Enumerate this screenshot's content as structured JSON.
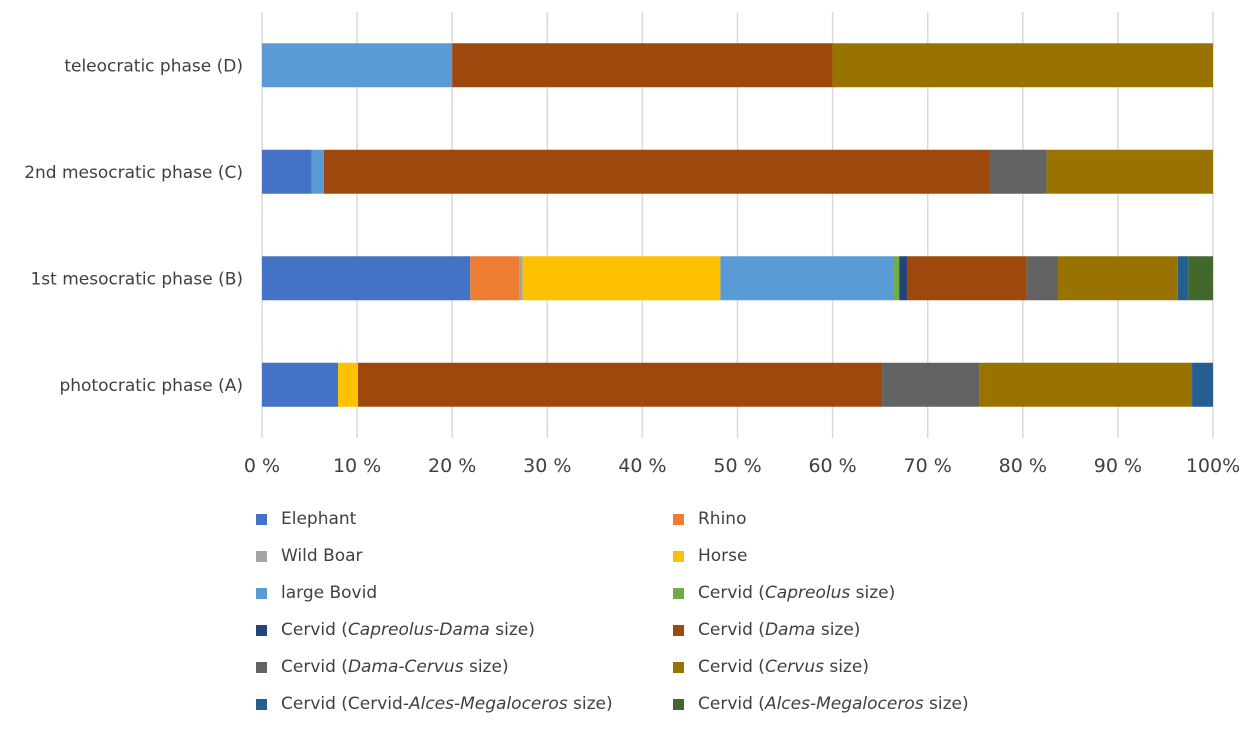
{
  "chart_data": {
    "type": "bar",
    "orientation": "horizontal",
    "stacked": "percent",
    "categories": [
      "photocratic phase (A)",
      "1st mesocratic phase (B)",
      "2nd mesocratic phase (C)",
      "teleocratic phase (D)"
    ],
    "series": [
      {
        "name": "Elephant",
        "label_parts": [
          {
            "t": "Elephant",
            "i": false
          }
        ],
        "color": "#4472C4",
        "values": [
          8.0,
          21.9,
          5.2,
          0
        ]
      },
      {
        "name": "Rhino",
        "label_parts": [
          {
            "t": "Rhino",
            "i": false
          }
        ],
        "color": "#ED7D31",
        "values": [
          0,
          5.2,
          0,
          0
        ]
      },
      {
        "name": "Wild Boar",
        "label_parts": [
          {
            "t": "Wild Boar",
            "i": false
          }
        ],
        "color": "#A5A5A5",
        "values": [
          0,
          0.3,
          0,
          0
        ]
      },
      {
        "name": "Horse",
        "label_parts": [
          {
            "t": "Horse",
            "i": false
          }
        ],
        "color": "#FFC000",
        "values": [
          2.1,
          20.8,
          0,
          0
        ]
      },
      {
        "name": "large Bovid",
        "label_parts": [
          {
            "t": "large Bovid",
            "i": false
          }
        ],
        "color": "#5B9BD5",
        "values": [
          0,
          18.2,
          1.3,
          20.0
        ]
      },
      {
        "name": "Cervid (Capreolus size)",
        "label_parts": [
          {
            "t": "Cervid (",
            "i": false
          },
          {
            "t": "Capreolus",
            "i": true
          },
          {
            "t": " size)",
            "i": false
          }
        ],
        "color": "#70AD47",
        "values": [
          0,
          0.6,
          0,
          0
        ]
      },
      {
        "name": "Cervid (Capreolus-Dama size)",
        "label_parts": [
          {
            "t": "Cervid (",
            "i": false
          },
          {
            "t": "Capreolus-Dama",
            "i": true
          },
          {
            "t": " size)",
            "i": false
          }
        ],
        "color": "#264478",
        "values": [
          0,
          0.9,
          0,
          0
        ]
      },
      {
        "name": "Cervid (Dama size)",
        "label_parts": [
          {
            "t": "Cervid (",
            "i": false
          },
          {
            "t": "Dama",
            "i": true
          },
          {
            "t": " size)",
            "i": false
          }
        ],
        "color": "#9E480E",
        "values": [
          55.1,
          12.5,
          70.0,
          40.0
        ]
      },
      {
        "name": "Cervid (Dama-Cervus size)",
        "label_parts": [
          {
            "t": "Cervid (",
            "i": false
          },
          {
            "t": "Dama-Cervus",
            "i": true
          },
          {
            "t": " size)",
            "i": false
          }
        ],
        "color": "#636363",
        "values": [
          10.2,
          3.3,
          6.0,
          0
        ]
      },
      {
        "name": "Cervid (Cervus size)",
        "label_parts": [
          {
            "t": "Cervid (",
            "i": false
          },
          {
            "t": "Cervus",
            "i": true
          },
          {
            "t": " size)",
            "i": false
          }
        ],
        "color": "#997300",
        "values": [
          22.4,
          12.6,
          17.5,
          40.0
        ]
      },
      {
        "name": "Cervid (Cervid-Alces-Megaloceros size)",
        "label_parts": [
          {
            "t": "Cervid (Cervid-",
            "i": false
          },
          {
            "t": "Alces-Megaloceros",
            "i": true
          },
          {
            "t": " size)",
            "i": false
          }
        ],
        "color": "#255E91",
        "values": [
          2.2,
          1.1,
          0,
          0
        ]
      },
      {
        "name": "Cervid (Alces-Megaloceros size)",
        "label_parts": [
          {
            "t": "Cervid (",
            "i": false
          },
          {
            "t": "Alces-Megaloceros",
            "i": true
          },
          {
            "t": " size)",
            "i": false
          }
        ],
        "color": "#43682B",
        "values": [
          0,
          2.6,
          0,
          0
        ]
      }
    ],
    "x_ticks": [
      "0 %",
      "10 %",
      "20 %",
      "30 %",
      "40 %",
      "50 %",
      "60 %",
      "70 %",
      "80 %",
      "90 %",
      "100%"
    ],
    "xlim": [
      0,
      100
    ],
    "grid": "vertical",
    "legend_position": "bottom"
  }
}
